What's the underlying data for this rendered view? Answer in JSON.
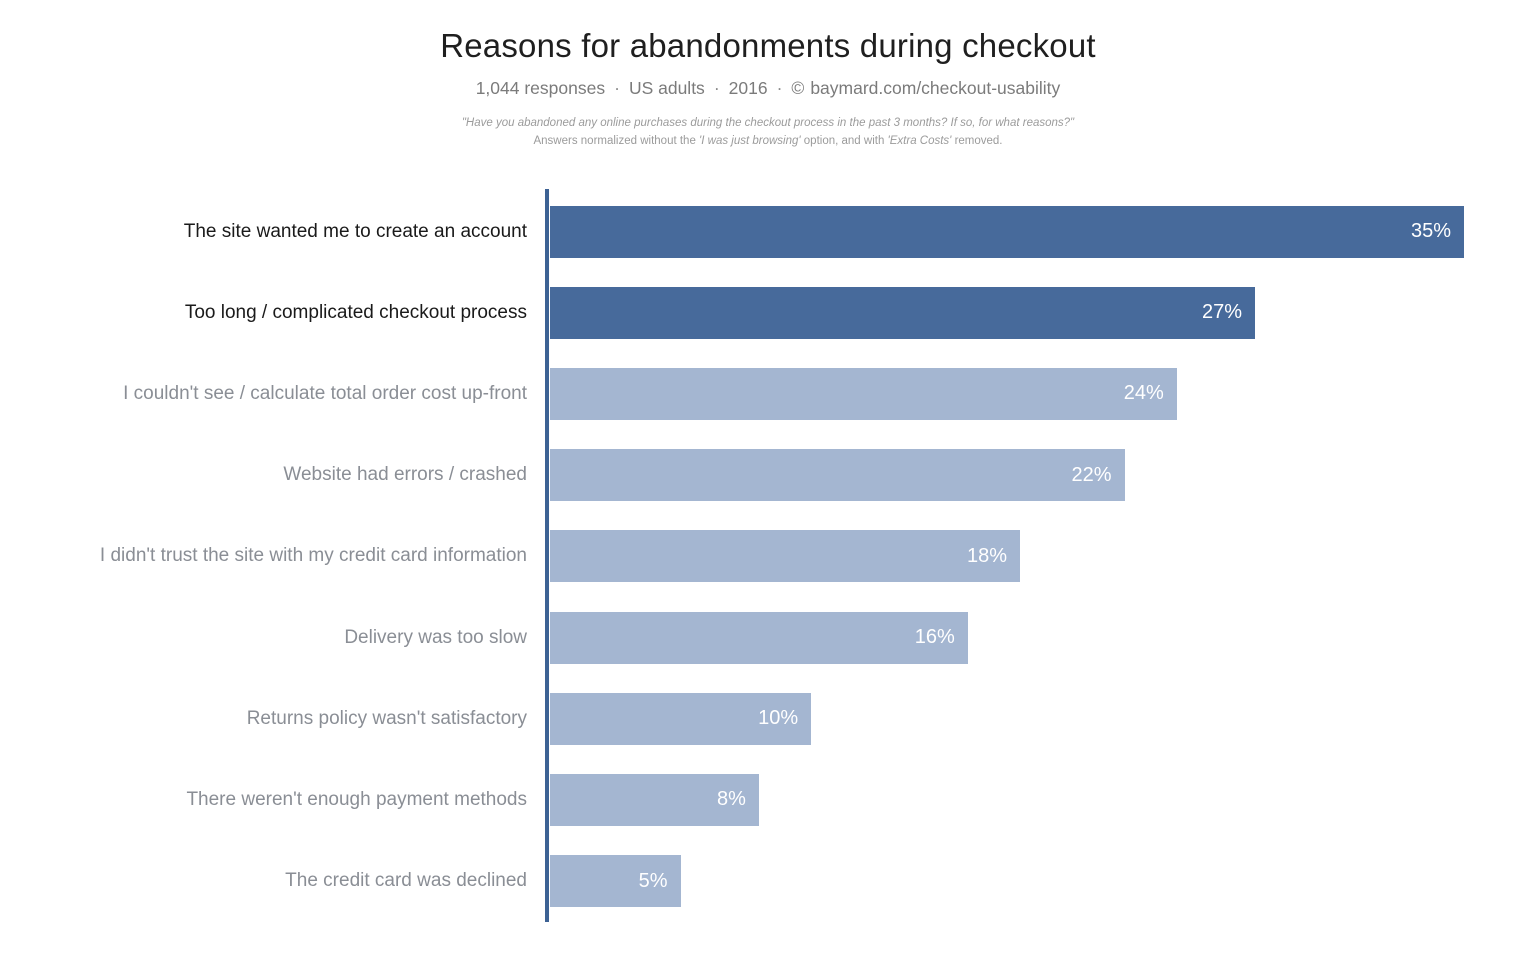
{
  "header": {
    "title": "Reasons for abandonments during checkout",
    "meta": {
      "responses": "1,044 responses",
      "audience": "US adults",
      "year": "2016",
      "copyright_symbol": "©",
      "source": "baymard.com/checkout-usability",
      "separator": "·"
    },
    "note_line1": "\"Have you abandoned any online purchases during the checkout process in the past 3 months? If so, for what reasons?\"",
    "note_line2": {
      "prefix": "Answers normalized without the ",
      "italic1": "'I was just browsing'",
      "middle": " option, and with ",
      "italic2": "'Extra Costs'",
      "suffix": " removed."
    }
  },
  "chart_data": {
    "type": "bar",
    "orientation": "horizontal",
    "title": "Reasons for abandonments during checkout",
    "subtitle": "1,044 responses · US adults · 2016 · © baymard.com/checkout-usability",
    "categories": [
      "The site wanted me to create an account",
      "Too long / complicated checkout process",
      "I couldn't see / calculate total order cost up-front",
      "Website had errors / crashed",
      "I didn't trust the site with my credit card information",
      "Delivery was too slow",
      "Returns policy wasn't satisfactory",
      "There weren't enough payment methods",
      "The credit card was declined"
    ],
    "values": [
      35,
      27,
      24,
      22,
      18,
      16,
      10,
      8,
      5
    ],
    "value_labels": [
      "35%",
      "27%",
      "24%",
      "22%",
      "18%",
      "16%",
      "10%",
      "8%",
      "5%"
    ],
    "highlighted": [
      true,
      true,
      false,
      false,
      false,
      false,
      false,
      false,
      false
    ],
    "xlim": [
      0,
      35
    ],
    "xlabel": "",
    "ylabel": "",
    "grid": false,
    "legend": false,
    "value_label_position": "inside-end",
    "colors": {
      "bar_primary": "#476a9b",
      "bar_secondary": "#a4b6d1",
      "axis_line": "#3d6294",
      "label_primary": "#1a1a1a",
      "label_secondary": "#8a8e95",
      "value_text": "#ffffff"
    }
  }
}
